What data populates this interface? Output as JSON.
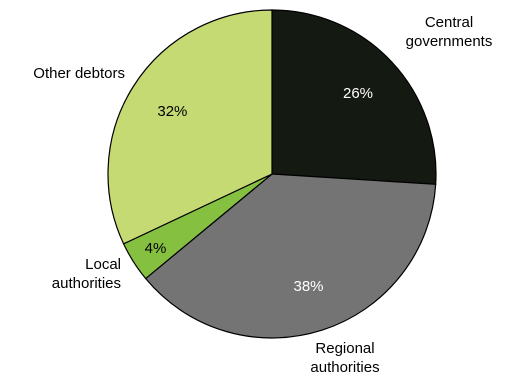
{
  "chart_data": {
    "type": "pie",
    "title": "",
    "slices": [
      {
        "label": [
          "Central",
          "governments"
        ],
        "value": 26,
        "value_label": "26%",
        "color": "#141a12",
        "value_label_color": "#ffffff"
      },
      {
        "label": [
          "Regional",
          "authorities"
        ],
        "value": 38,
        "value_label": "38%",
        "color": "#747474",
        "value_label_color": "#ffffff"
      },
      {
        "label": [
          "Local",
          "authorities"
        ],
        "value": 4,
        "value_label": "4%",
        "color": "#86c040",
        "value_label_color": "#000000"
      },
      {
        "label": [
          "Other debtors"
        ],
        "value": 32,
        "value_label": "32%",
        "color": "#c6da74",
        "value_label_color": "#000000"
      }
    ],
    "start_angle_deg": 0,
    "direction": "clockwise",
    "border_color": "#000000",
    "legend": "none"
  }
}
